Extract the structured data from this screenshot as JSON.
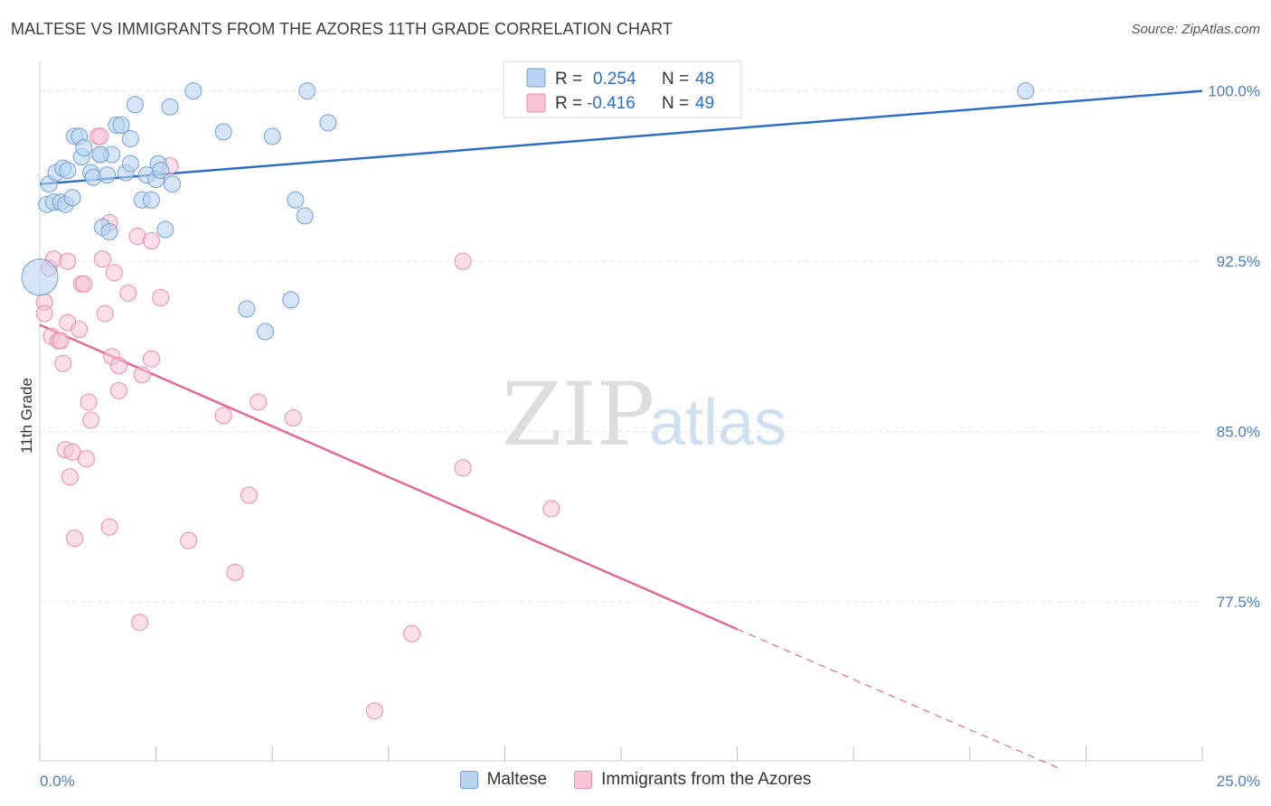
{
  "header": {
    "title": "MALTESE VS IMMIGRANTS FROM THE AZORES 11TH GRADE CORRELATION CHART",
    "source": "Source: ZipAtlas.com"
  },
  "watermark": {
    "zip": "ZIP",
    "atlas": "atlas"
  },
  "legend_box": {
    "rows": [
      {
        "r_label": "R =",
        "r_value": "0.254",
        "n_label": "N =",
        "n_value": "48"
      },
      {
        "r_label": "R =",
        "r_value": "-0.416",
        "n_label": "N =",
        "n_value": "49"
      }
    ]
  },
  "colors": {
    "maltese_fill": "#b9d3f2",
    "maltese_stroke": "#6f9fd8",
    "maltese_line": "#2e6ec4",
    "azores_fill": "#f8c5d5",
    "azores_stroke": "#ea8aa9",
    "azores_line": "#e06a94",
    "tick_text": "#4a7cc4",
    "grid": "#e6e6e6"
  },
  "chart_data": {
    "type": "scatter",
    "title": "MALTESE VS IMMIGRANTS FROM THE AZORES 11TH GRADE CORRELATION CHART",
    "xlabel": "",
    "ylabel": "11th Grade",
    "xlim": [
      0,
      25
    ],
    "ylim": [
      70.5,
      101.3
    ],
    "x_tick_labels": [
      "0.0%",
      "25.0%"
    ],
    "y_ticks": [
      77.5,
      85.0,
      92.5,
      100.0
    ],
    "y_tick_labels": [
      "77.5%",
      "85.0%",
      "92.5%",
      "100.0%"
    ],
    "grid": true,
    "legend_position": "bottom",
    "series": [
      {
        "name": "Maltese",
        "r": 0.254,
        "n": 48,
        "trend": {
          "x": [
            0,
            25
          ],
          "y": [
            95.9,
            100.0
          ]
        },
        "points": [
          [
            0.0,
            91.8
          ],
          [
            0.15,
            95.0
          ],
          [
            0.2,
            95.9
          ],
          [
            0.3,
            95.1
          ],
          [
            0.35,
            96.4
          ],
          [
            0.45,
            95.1
          ],
          [
            0.5,
            96.6
          ],
          [
            0.55,
            95.0
          ],
          [
            0.6,
            96.5
          ],
          [
            0.7,
            95.3
          ],
          [
            0.75,
            98.0
          ],
          [
            0.85,
            98.0
          ],
          [
            0.9,
            97.1
          ],
          [
            0.95,
            97.5
          ],
          [
            1.1,
            96.4
          ],
          [
            1.15,
            96.2
          ],
          [
            1.3,
            97.2
          ],
          [
            1.35,
            94.0
          ],
          [
            1.45,
            96.3
          ],
          [
            1.5,
            93.8
          ],
          [
            1.55,
            97.2
          ],
          [
            1.65,
            98.5
          ],
          [
            1.75,
            98.5
          ],
          [
            1.85,
            96.4
          ],
          [
            1.95,
            96.8
          ],
          [
            1.95,
            97.9
          ],
          [
            2.05,
            99.4
          ],
          [
            2.2,
            95.2
          ],
          [
            2.3,
            96.3
          ],
          [
            2.4,
            95.2
          ],
          [
            2.5,
            96.1
          ],
          [
            2.55,
            96.8
          ],
          [
            2.6,
            96.5
          ],
          [
            2.7,
            93.9
          ],
          [
            2.8,
            99.3
          ],
          [
            2.85,
            95.9
          ],
          [
            3.3,
            100.0
          ],
          [
            3.95,
            98.2
          ],
          [
            4.45,
            90.4
          ],
          [
            4.85,
            89.4
          ],
          [
            5.0,
            98.0
          ],
          [
            5.4,
            90.8
          ],
          [
            5.5,
            95.2
          ],
          [
            5.7,
            94.5
          ],
          [
            5.75,
            100.0
          ],
          [
            6.2,
            98.6
          ],
          [
            21.2,
            100.0
          ],
          [
            1.3,
            97.2
          ]
        ]
      },
      {
        "name": "Immigrants from the Azores",
        "r": -0.416,
        "n": 49,
        "trend": {
          "x": [
            0,
            15
          ],
          "y": [
            89.7,
            76.3
          ]
        },
        "trend_dashed": {
          "x": [
            15,
            22
          ],
          "y": [
            76.3,
            70.1
          ]
        },
        "points": [
          [
            0.1,
            90.7
          ],
          [
            0.1,
            90.2
          ],
          [
            0.2,
            92.2
          ],
          [
            0.25,
            89.2
          ],
          [
            0.3,
            92.6
          ],
          [
            0.4,
            89.0
          ],
          [
            0.45,
            89.0
          ],
          [
            0.5,
            88.0
          ],
          [
            0.55,
            84.2
          ],
          [
            0.6,
            89.8
          ],
          [
            0.6,
            92.5
          ],
          [
            0.65,
            83.0
          ],
          [
            0.7,
            84.1
          ],
          [
            0.75,
            80.3
          ],
          [
            0.85,
            89.5
          ],
          [
            0.9,
            91.5
          ],
          [
            0.95,
            91.5
          ],
          [
            1.0,
            83.8
          ],
          [
            1.05,
            86.3
          ],
          [
            1.1,
            85.5
          ],
          [
            1.25,
            98.0
          ],
          [
            1.3,
            98.0
          ],
          [
            1.35,
            92.6
          ],
          [
            1.4,
            90.2
          ],
          [
            1.5,
            94.2
          ],
          [
            1.5,
            80.8
          ],
          [
            1.55,
            88.3
          ],
          [
            1.6,
            92.0
          ],
          [
            1.7,
            87.9
          ],
          [
            1.7,
            86.8
          ],
          [
            1.9,
            91.1
          ],
          [
            2.1,
            93.6
          ],
          [
            2.15,
            76.6
          ],
          [
            2.2,
            87.5
          ],
          [
            2.4,
            88.2
          ],
          [
            2.4,
            93.4
          ],
          [
            2.6,
            90.9
          ],
          [
            2.8,
            96.7
          ],
          [
            3.2,
            80.2
          ],
          [
            3.95,
            85.7
          ],
          [
            4.2,
            78.8
          ],
          [
            4.5,
            82.2
          ],
          [
            4.7,
            86.3
          ],
          [
            5.45,
            85.6
          ],
          [
            7.2,
            72.7
          ],
          [
            8.0,
            76.1
          ],
          [
            9.1,
            92.5
          ],
          [
            9.1,
            83.4
          ],
          [
            11.0,
            81.6
          ]
        ]
      }
    ]
  }
}
